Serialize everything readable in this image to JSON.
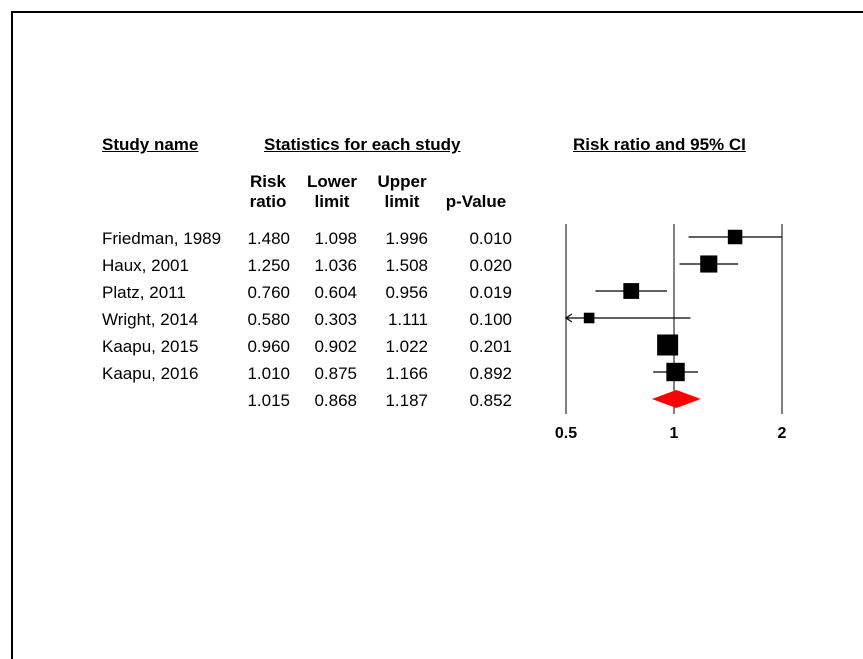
{
  "headers": {
    "study_name": "Study name",
    "statistics": "Statistics for each study",
    "plot_title": "Risk ratio and 95% CI"
  },
  "columns": {
    "risk_ratio": [
      "Risk",
      "ratio"
    ],
    "lower_limit": [
      "Lower",
      "limit"
    ],
    "upper_limit": [
      "Upper",
      "limit"
    ],
    "p_value": [
      "p-Value"
    ]
  },
  "rows": [
    {
      "study": "Friedman, 1989",
      "rr": "1.480",
      "lower": "1.098",
      "upper": "1.996",
      "p": "0.010"
    },
    {
      "study": "Haux, 2001",
      "rr": "1.250",
      "lower": "1.036",
      "upper": "1.508",
      "p": "0.020"
    },
    {
      "study": "Platz, 2011",
      "rr": "0.760",
      "lower": "0.604",
      "upper": "0.956",
      "p": "0.019"
    },
    {
      "study": "Wright, 2014",
      "rr": "0.580",
      "lower": "0.303",
      "upper": "1.111",
      "p": "0.100"
    },
    {
      "study": "Kaapu, 2015",
      "rr": "0.960",
      "lower": "0.902",
      "upper": "1.022",
      "p": "0.201"
    },
    {
      "study": "Kaapu, 2016",
      "rr": "1.010",
      "lower": "0.875",
      "upper": "1.166",
      "p": "0.892"
    }
  ],
  "summary": {
    "study": "",
    "rr": "1.015",
    "lower": "0.868",
    "upper": "1.187",
    "p": "0.852"
  },
  "axis": {
    "ticks": [
      "0.5",
      "1",
      "2"
    ]
  },
  "chart_data": {
    "type": "forest",
    "scale": "log",
    "xlim": [
      0.5,
      2
    ],
    "reference_line": 1,
    "x_ticks": [
      0.5,
      1,
      2
    ],
    "measure": "Risk ratio",
    "studies": [
      {
        "name": "Friedman, 1989",
        "rr": 1.48,
        "lower": 1.098,
        "upper": 1.996,
        "p": 0.01,
        "weight": 0.5
      },
      {
        "name": "Haux, 2001",
        "rr": 1.25,
        "lower": 1.036,
        "upper": 1.508,
        "p": 0.02,
        "weight": 0.7
      },
      {
        "name": "Platz, 2011",
        "rr": 0.76,
        "lower": 0.604,
        "upper": 0.956,
        "p": 0.019,
        "weight": 0.6
      },
      {
        "name": "Wright, 2014",
        "rr": 0.58,
        "lower": 0.303,
        "upper": 1.111,
        "p": 0.1,
        "weight": 0.2,
        "lower_truncated": true
      },
      {
        "name": "Kaapu, 2015",
        "rr": 0.96,
        "lower": 0.902,
        "upper": 1.022,
        "p": 0.201,
        "weight": 1.0
      },
      {
        "name": "Kaapu, 2016",
        "rr": 1.01,
        "lower": 0.875,
        "upper": 1.166,
        "p": 0.892,
        "weight": 0.8
      }
    ],
    "pooled": {
      "rr": 1.015,
      "lower": 0.868,
      "upper": 1.187,
      "p": 0.852,
      "color": "#ff0000"
    }
  }
}
